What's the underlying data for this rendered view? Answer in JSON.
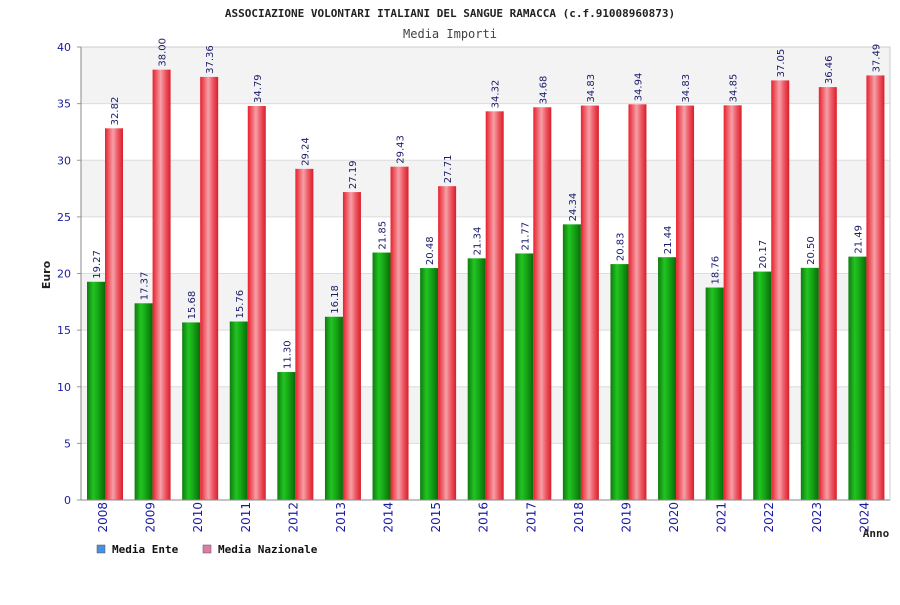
{
  "chart_data": {
    "type": "bar",
    "title": "ASSOCIAZIONE VOLONTARI ITALIANI DEL SANGUE RAMACCA (c.f.91008960873)",
    "subtitle": "Media Importi",
    "xlabel": "Anno",
    "ylabel": "Euro",
    "ylim": [
      0,
      40
    ],
    "yticks": [
      0,
      5,
      10,
      15,
      20,
      25,
      30,
      35,
      40
    ],
    "categories": [
      "2008",
      "2009",
      "2010",
      "2011",
      "2012",
      "2013",
      "2014",
      "2015",
      "2016",
      "2017",
      "2018",
      "2019",
      "2020",
      "2021",
      "2022",
      "2023",
      "2024"
    ],
    "series": [
      {
        "name": "Media Ente",
        "color": "#22aa22",
        "values": [
          19.27,
          17.37,
          15.68,
          15.76,
          11.3,
          16.18,
          21.85,
          20.48,
          21.34,
          21.77,
          24.34,
          20.83,
          21.44,
          18.76,
          20.17,
          20.5,
          21.49
        ],
        "labels": [
          "19.27",
          "17.37",
          "15.68",
          "15.76",
          "11.30",
          "16.18",
          "21.85",
          "20.48",
          "21.34",
          "21.77",
          "24.34",
          "20.83",
          "21.44",
          "18.76",
          "20.17",
          "20.50",
          "21.49"
        ]
      },
      {
        "name": "Media Nazionale",
        "color": "#e8323c",
        "values": [
          32.82,
          38.0,
          37.36,
          34.79,
          29.24,
          27.19,
          29.43,
          27.71,
          34.32,
          34.68,
          34.83,
          34.94,
          34.83,
          34.85,
          37.05,
          36.46,
          37.49
        ],
        "labels": [
          "32.82",
          "38.00",
          "37.36",
          "34.79",
          "29.24",
          "27.19",
          "29.43",
          "27.71",
          "34.32",
          "34.68",
          "34.83",
          "34.94",
          "34.83",
          "34.85",
          "37.05",
          "36.46",
          "37.49"
        ]
      }
    ],
    "legend": {
      "position": "bottom-left",
      "items": [
        {
          "label": "Media Ente",
          "color": "#4a90e2"
        },
        {
          "label": "Media Nazionale",
          "color": "#e07aa8"
        }
      ]
    },
    "grid": true,
    "alternating_bands": true
  }
}
